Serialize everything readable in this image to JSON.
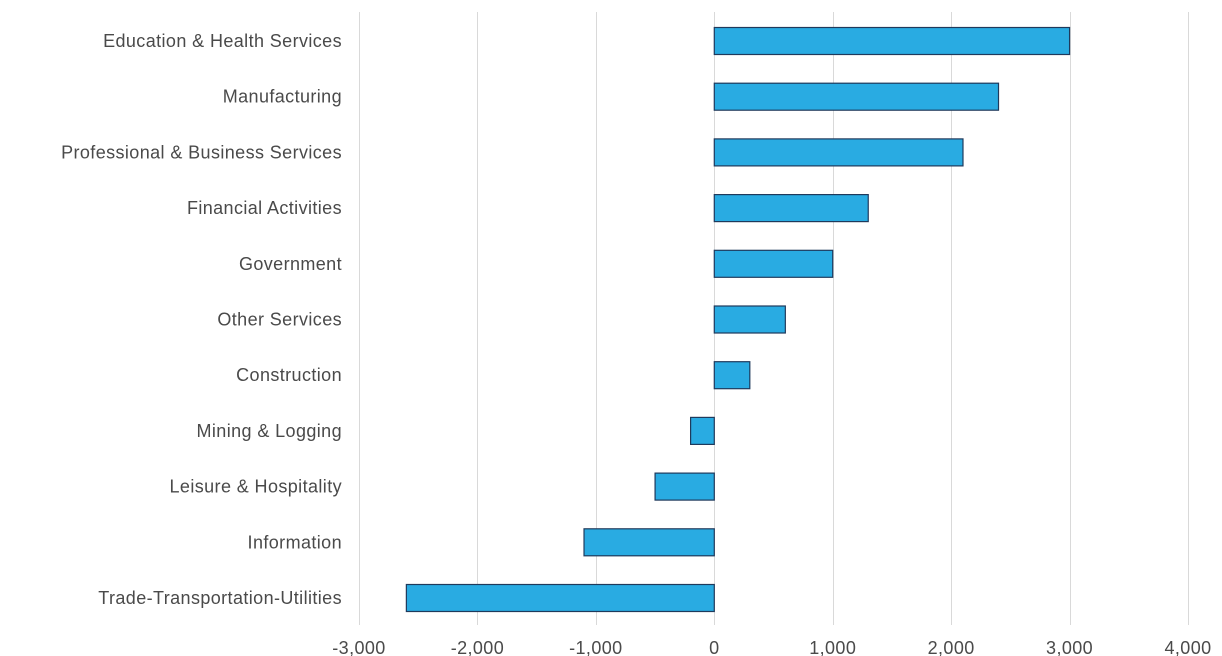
{
  "chart_data": {
    "type": "bar",
    "orientation": "horizontal",
    "categories": [
      "Education & Health Services",
      "Manufacturing",
      "Professional & Business Services",
      "Financial Activities",
      "Government",
      "Other Services",
      "Construction",
      "Mining & Logging",
      "Leisure & Hospitality",
      "Information",
      "Trade-Transportation-Utilities"
    ],
    "values": [
      3000,
      2400,
      2100,
      1300,
      1000,
      600,
      300,
      -200,
      -500,
      -1100,
      -2600
    ],
    "xlim": [
      -3000,
      4000
    ],
    "xticks": [
      -3000,
      -2000,
      -1000,
      0,
      1000,
      2000,
      3000,
      4000
    ],
    "xtick_labels": [
      "-3,000",
      "-2,000",
      "-1,000",
      "0",
      "1,000",
      "2,000",
      "3,000",
      "4,000"
    ],
    "title": "",
    "xlabel": "",
    "ylabel": "",
    "grid": "vertical",
    "legend": "none",
    "bar_color": "#29abe2",
    "bar_edge_color": "#1f3a5c",
    "grid_color": "#d9d9d9",
    "label_color": "#4a4a4a"
  }
}
